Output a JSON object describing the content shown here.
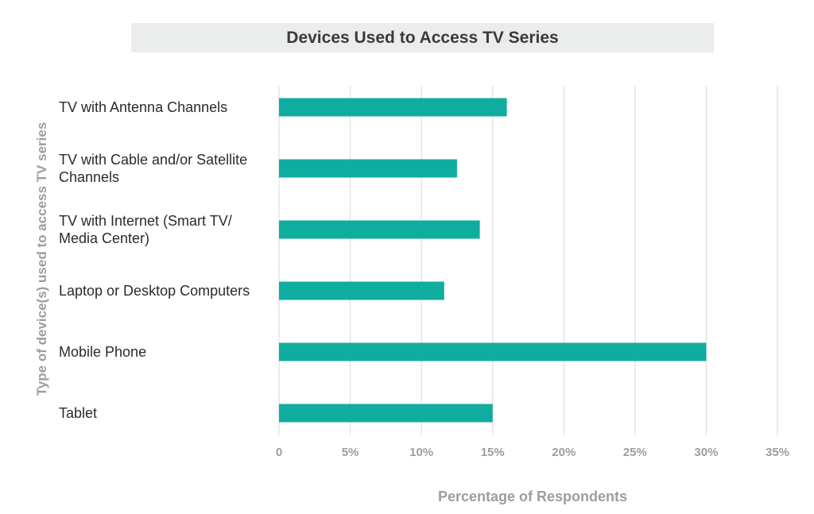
{
  "chart_data": {
    "type": "bar",
    "orientation": "horizontal",
    "title": "Devices Used to Access TV Series",
    "xlabel": "Percentage of Respondents",
    "ylabel": "Type of device(s) used to access TV series",
    "categories": [
      [
        "TV with Antenna Channels"
      ],
      [
        "TV with Cable and/or Satellite",
        "Channels"
      ],
      [
        "TV with Internet (Smart TV/",
        "Media Center)"
      ],
      [
        "Laptop or Desktop Computers"
      ],
      [
        "Mobile Phone"
      ],
      [
        "Tablet"
      ]
    ],
    "values": [
      16,
      12.5,
      14.1,
      11.6,
      30,
      15
    ],
    "xlim": [
      0,
      35
    ],
    "xticks": [
      0,
      5,
      10,
      15,
      20,
      25,
      30,
      35
    ],
    "xtick_labels": [
      "0",
      "5%",
      "10%",
      "15%",
      "20%",
      "25%",
      "30%",
      "35%"
    ],
    "bar_color": "#0fada0",
    "grid": "vertical"
  }
}
